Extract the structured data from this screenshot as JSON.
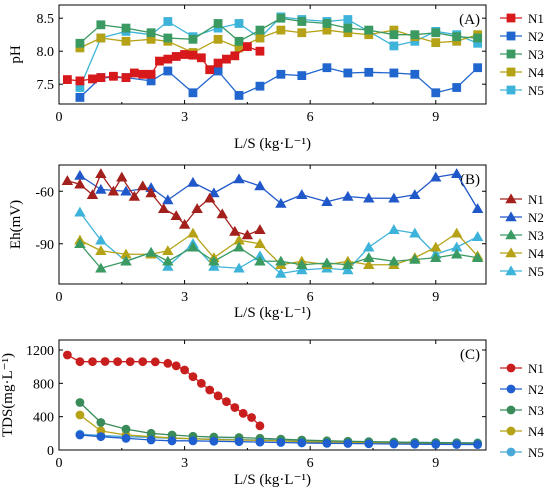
{
  "chart_data": [
    {
      "type": "line",
      "panel_label": "(A)",
      "xlabel": "L/S (kg·L⁻¹)",
      "ylabel": "pH",
      "xlim": [
        0,
        10.2
      ],
      "ylim": [
        7.2,
        8.7
      ],
      "xticks": [
        0,
        3,
        6,
        9
      ],
      "yticks": [
        7.5,
        8.0,
        8.5
      ],
      "ytick_labels": [
        "7.5",
        "8.0",
        "8.5"
      ],
      "legend_position": "right",
      "series": [
        {
          "name": "N1",
          "color": "#d7191c",
          "marker": "square",
          "x": [
            0.2,
            0.5,
            0.8,
            1.0,
            1.3,
            1.6,
            1.8,
            2.0,
            2.2,
            2.4,
            2.6,
            2.8,
            3.0,
            3.2,
            3.4,
            3.6,
            3.8,
            4.0,
            4.2,
            4.5,
            4.8
          ],
          "y": [
            7.57,
            7.55,
            7.58,
            7.6,
            7.62,
            7.6,
            7.67,
            7.65,
            7.65,
            7.85,
            7.88,
            7.92,
            7.95,
            7.94,
            7.9,
            7.72,
            7.82,
            7.88,
            7.93,
            8.07,
            8.0
          ]
        },
        {
          "name": "N2",
          "color": "#2166ce",
          "marker": "square",
          "x": [
            0.5,
            1.0,
            1.6,
            2.2,
            2.6,
            3.2,
            3.8,
            4.3,
            4.8,
            5.3,
            5.8,
            6.4,
            6.9,
            7.4,
            8.0,
            8.5,
            9.0,
            9.5,
            10.0
          ],
          "y": [
            7.3,
            7.6,
            7.6,
            7.55,
            7.7,
            7.37,
            7.7,
            7.33,
            7.47,
            7.65,
            7.63,
            7.75,
            7.67,
            7.68,
            7.67,
            7.65,
            7.37,
            7.45,
            7.75
          ]
        },
        {
          "name": "N3",
          "color": "#3a9a62",
          "marker": "square",
          "x": [
            0.5,
            1.0,
            1.6,
            2.2,
            2.6,
            3.2,
            3.8,
            4.3,
            4.8,
            5.3,
            5.8,
            6.4,
            6.9,
            7.4,
            8.0,
            8.5,
            9.0,
            9.5,
            10.0
          ],
          "y": [
            8.12,
            8.4,
            8.35,
            8.28,
            8.2,
            8.18,
            8.42,
            8.15,
            8.32,
            8.5,
            8.45,
            8.42,
            8.35,
            8.32,
            8.25,
            8.25,
            8.28,
            8.22,
            8.2
          ]
        },
        {
          "name": "N4",
          "color": "#b5a216",
          "marker": "square",
          "x": [
            0.5,
            1.0,
            1.6,
            2.2,
            2.6,
            3.2,
            3.8,
            4.3,
            4.8,
            5.3,
            5.8,
            6.4,
            6.9,
            7.4,
            8.0,
            8.5,
            9.0,
            9.5,
            10.0
          ],
          "y": [
            8.05,
            8.2,
            8.15,
            8.18,
            8.15,
            7.98,
            8.18,
            8.05,
            8.2,
            8.32,
            8.28,
            8.32,
            8.28,
            8.25,
            8.32,
            8.22,
            8.13,
            8.15,
            8.25
          ]
        },
        {
          "name": "N5",
          "color": "#3db3d9",
          "marker": "square",
          "x": [
            0.5,
            1.0,
            1.6,
            2.2,
            2.6,
            3.2,
            3.8,
            4.3,
            4.8,
            5.3,
            5.8,
            6.4,
            6.9,
            7.4,
            8.0,
            8.5,
            9.0,
            9.5,
            10.0
          ],
          "y": [
            7.45,
            8.2,
            8.3,
            8.25,
            8.45,
            8.22,
            8.35,
            8.42,
            8.2,
            8.52,
            8.48,
            8.45,
            8.48,
            8.3,
            8.08,
            8.15,
            8.3,
            8.25,
            8.12
          ]
        }
      ]
    },
    {
      "type": "line",
      "panel_label": "(B)",
      "xlabel": "L/S (kg·L⁻¹)",
      "ylabel": "Eh(mV)",
      "xlim": [
        0,
        10.2
      ],
      "ylim": [
        -113,
        -45
      ],
      "xticks": [
        0,
        3,
        6,
        9
      ],
      "yticks": [
        -60,
        -90
      ],
      "ytick_labels": [
        "-60",
        "-90"
      ],
      "legend_position": "right",
      "series": [
        {
          "name": "N1",
          "color": "#a3201c",
          "marker": "triangle",
          "x": [
            0.2,
            0.5,
            0.8,
            1.0,
            1.3,
            1.5,
            1.8,
            2.0,
            2.2,
            2.5,
            2.8,
            3.0,
            3.3,
            3.6,
            3.9,
            4.2,
            4.5,
            4.8
          ],
          "y": [
            -54,
            -56,
            -62,
            -50,
            -60,
            -52,
            -63,
            -57,
            -61,
            -70,
            -74,
            -79,
            -70,
            -64,
            -73,
            -83,
            -85,
            -82
          ]
        },
        {
          "name": "N2",
          "color": "#2158c9",
          "marker": "triangle",
          "x": [
            0.5,
            1.0,
            1.6,
            2.2,
            2.6,
            3.2,
            3.7,
            4.3,
            4.8,
            5.3,
            5.8,
            6.4,
            6.9,
            7.4,
            8.0,
            8.5,
            9.0,
            9.5,
            10.0
          ],
          "y": [
            -51,
            -59,
            -60,
            -58,
            -65,
            -55,
            -61,
            -53,
            -57,
            -67,
            -62,
            -66,
            -63,
            -64,
            -64,
            -62,
            -52,
            -50,
            -70
          ]
        },
        {
          "name": "N3",
          "color": "#3a9a62",
          "marker": "triangle",
          "x": [
            0.5,
            1.0,
            1.6,
            2.2,
            2.6,
            3.2,
            3.7,
            4.3,
            4.8,
            5.3,
            5.8,
            6.4,
            6.9,
            7.4,
            8.0,
            8.5,
            9.0,
            9.5,
            10.0
          ],
          "y": [
            -90,
            -104,
            -100,
            -95,
            -100,
            -92,
            -100,
            -92,
            -100,
            -100,
            -102,
            -101,
            -102,
            -98,
            -100,
            -99,
            -98,
            -96,
            -98
          ]
        },
        {
          "name": "N4",
          "color": "#b5a216",
          "marker": "triangle",
          "x": [
            0.5,
            1.0,
            1.6,
            2.2,
            2.6,
            3.2,
            3.7,
            4.3,
            4.8,
            5.3,
            5.8,
            6.4,
            6.9,
            7.4,
            8.0,
            8.5,
            9.0,
            9.5,
            10.0
          ],
          "y": [
            -88,
            -94,
            -96,
            -96,
            -94,
            -84,
            -98,
            -88,
            -90,
            -102,
            -100,
            -102,
            -100,
            -102,
            -102,
            -98,
            -92,
            -84,
            -97
          ]
        },
        {
          "name": "N5",
          "color": "#3db3d9",
          "marker": "triangle",
          "x": [
            0.5,
            1.0,
            1.6,
            2.2,
            2.6,
            3.2,
            3.7,
            4.3,
            4.8,
            5.3,
            5.8,
            6.4,
            6.9,
            7.4,
            8.0,
            8.5,
            9.0,
            9.5,
            10.0
          ],
          "y": [
            -72,
            -88,
            -100,
            -95,
            -103,
            -90,
            -103,
            -104,
            -97,
            -107,
            -105,
            -104,
            -105,
            -92,
            -82,
            -84,
            -96,
            -92,
            -86
          ]
        }
      ]
    },
    {
      "type": "line",
      "panel_label": "(C)",
      "xlabel": "L/S (kg·L⁻¹)",
      "ylabel": "TDS(mg·L⁻¹)",
      "xlim": [
        0,
        10.2
      ],
      "ylim": [
        0,
        1320
      ],
      "xticks": [
        0,
        3,
        6,
        9
      ],
      "yticks": [
        0,
        400,
        800,
        1200
      ],
      "ytick_labels": [
        "0",
        "400",
        "800",
        "1200"
      ],
      "legend_position": "right",
      "series": [
        {
          "name": "N1",
          "color": "#c81e1e",
          "marker": "circle",
          "x": [
            0.2,
            0.5,
            0.8,
            1.1,
            1.4,
            1.7,
            2.0,
            2.3,
            2.6,
            2.8,
            3.0,
            3.2,
            3.4,
            3.6,
            3.8,
            4.0,
            4.2,
            4.4,
            4.6,
            4.8
          ],
          "y": [
            1140,
            1060,
            1060,
            1062,
            1060,
            1060,
            1060,
            1058,
            1040,
            1010,
            960,
            880,
            800,
            720,
            650,
            580,
            510,
            440,
            390,
            290
          ]
        },
        {
          "name": "N2",
          "color": "#1f5fcf",
          "marker": "circle",
          "x": [
            0.5,
            1.0,
            1.6,
            2.2,
            2.7,
            3.2,
            3.7,
            4.3,
            4.8,
            5.3,
            5.8,
            6.4,
            6.9,
            7.4,
            8.0,
            8.5,
            9.0,
            9.5,
            10.0
          ],
          "y": [
            180,
            160,
            140,
            120,
            110,
            110,
            105,
            100,
            95,
            90,
            85,
            80,
            78,
            75,
            72,
            70,
            68,
            66,
            65
          ]
        },
        {
          "name": "N3",
          "color": "#3a8a5a",
          "marker": "circle",
          "x": [
            0.5,
            1.0,
            1.6,
            2.2,
            2.7,
            3.2,
            3.7,
            4.3,
            4.8,
            5.3,
            5.8,
            6.4,
            6.9,
            7.4,
            8.0,
            8.5,
            9.0,
            9.5,
            10.0
          ],
          "y": [
            570,
            330,
            250,
            200,
            180,
            165,
            155,
            150,
            140,
            130,
            120,
            110,
            105,
            100,
            95,
            90,
            88,
            85,
            80
          ]
        },
        {
          "name": "N4",
          "color": "#b5a216",
          "marker": "circle",
          "x": [
            0.5,
            1.0,
            1.6,
            2.2,
            2.7,
            3.2,
            3.7,
            4.3,
            4.8,
            5.3,
            5.8,
            6.4,
            6.9,
            7.4,
            8.0,
            8.5,
            9.0,
            9.5,
            10.0
          ],
          "y": [
            420,
            230,
            180,
            160,
            145,
            135,
            125,
            120,
            115,
            110,
            100,
            95,
            90,
            88,
            85,
            82,
            80,
            78,
            76
          ]
        },
        {
          "name": "N5",
          "color": "#4aa8d8",
          "marker": "circle",
          "x": [
            0.5,
            1.0,
            1.6,
            2.2,
            2.7,
            3.2,
            3.7,
            4.3,
            4.8,
            5.3,
            5.8,
            6.4,
            6.9,
            7.4,
            8.0,
            8.5,
            9.0,
            9.5,
            10.0
          ],
          "y": [
            190,
            175,
            160,
            150,
            140,
            135,
            130,
            125,
            120,
            115,
            110,
            105,
            100,
            98,
            95,
            92,
            90,
            88,
            86
          ]
        }
      ]
    }
  ]
}
